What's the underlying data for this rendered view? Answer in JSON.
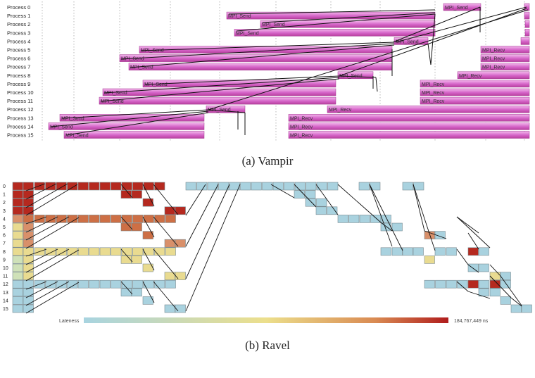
{
  "vampir": {
    "process_labels": [
      "Process 0",
      "Process 1",
      "Process 2",
      "Process 3",
      "Process 4",
      "Process 5",
      "Process 6",
      "Process 7",
      "Process 8",
      "Process 9",
      "Process 10",
      "Process 11",
      "Process 12",
      "Process 13",
      "Process 14",
      "Process 15"
    ],
    "send_label": "MPI_Send",
    "recv_label": "MPI_Recv",
    "caption": "(a) Vampir"
  },
  "ravel": {
    "process_labels": [
      "0",
      "1",
      "2",
      "3",
      "4",
      "5",
      "6",
      "7",
      "8",
      "9",
      "10",
      "11",
      "12",
      "13",
      "14",
      "15"
    ],
    "legend_label": "Lateness",
    "legend_max": "184,767,449 ns",
    "caption": "(b) Ravel",
    "colors": {
      "low": "#a8d4e0",
      "mid": "#ecdf8c",
      "high": "#b01c1c"
    }
  }
}
